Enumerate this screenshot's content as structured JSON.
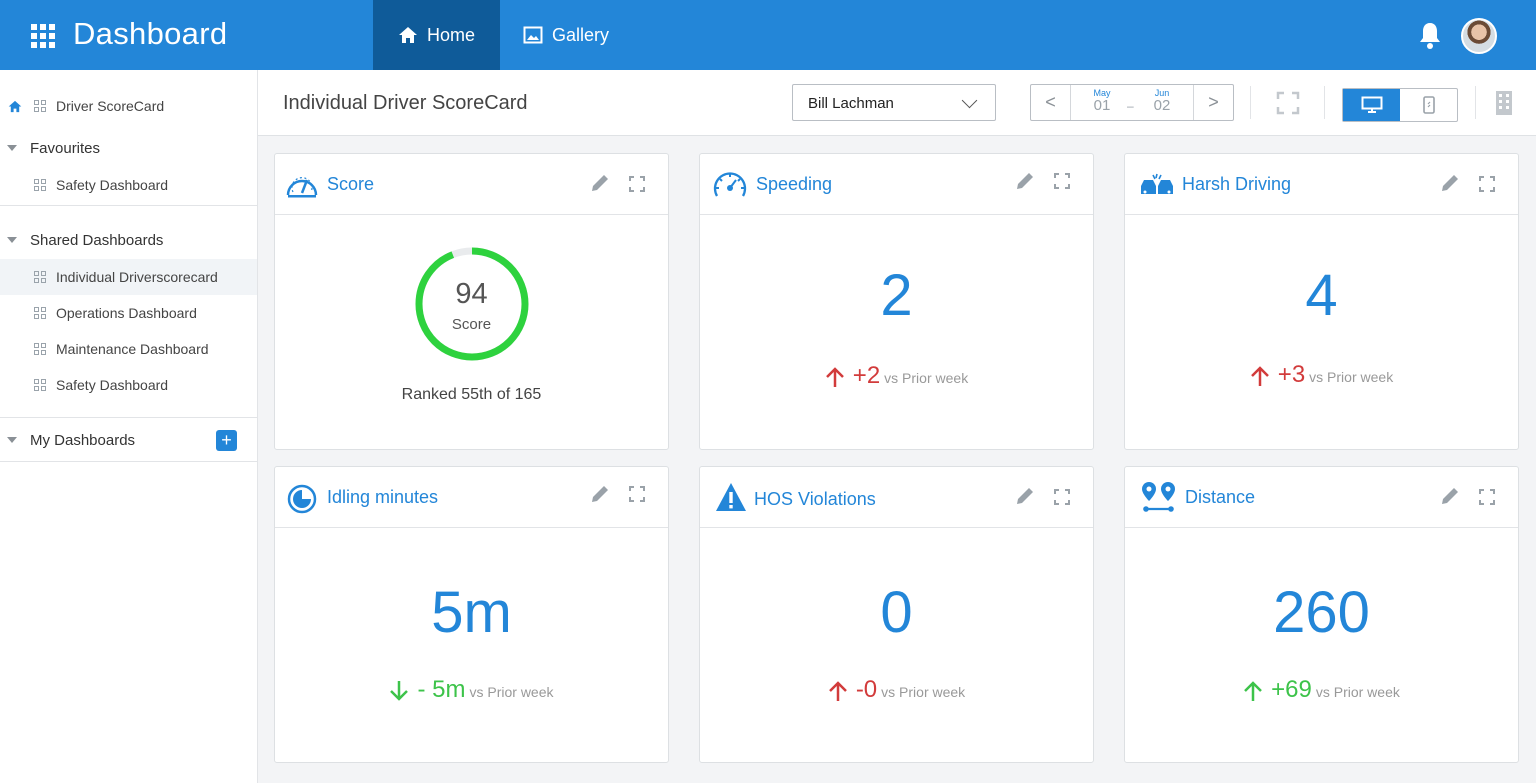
{
  "app": {
    "title": "Dashboard"
  },
  "nav": {
    "home": "Home",
    "gallery": "Gallery"
  },
  "sidebar": {
    "top_item": "Driver ScoreCard",
    "favourites": {
      "title": "Favourites",
      "items": [
        "Safety Dashboard"
      ]
    },
    "shared": {
      "title": "Shared Dashboards",
      "items": [
        "Individual Driverscorecard",
        "Operations Dashboard",
        "Maintenance Dashboard",
        "Safety Dashboard"
      ]
    },
    "mine": {
      "title": "My Dashboards",
      "add": "+"
    }
  },
  "toolbar": {
    "page_title": "Individual Driver ScoreCard",
    "driver": "Bill Lachman",
    "date_from": {
      "month": "May",
      "day": "01"
    },
    "date_to": {
      "month": "Jun",
      "day": "02"
    },
    "date_sep": "–",
    "prev": "<",
    "next": ">"
  },
  "cards": {
    "score": {
      "title": "Score",
      "value": "94",
      "label": "Score",
      "ranked": "Ranked 55th of 165",
      "gauge_fraction": 0.94
    },
    "speeding": {
      "title": "Speeding",
      "value": "2",
      "delta": "+2",
      "vs": "vs Prior week",
      "trend": "up"
    },
    "harsh": {
      "title": "Harsh Driving",
      "value": "4",
      "delta": "+3",
      "vs": "vs Prior week",
      "trend": "up"
    },
    "idling": {
      "title": "Idling minutes",
      "value": "5m",
      "delta": "- 5m",
      "vs": "vs Prior week",
      "trend": "down"
    },
    "hos": {
      "title": "HOS Violations",
      "value": "0",
      "delta": "-0",
      "vs": "vs Prior week",
      "trend": "up"
    },
    "distance": {
      "title": "Distance",
      "value": "260",
      "delta": "+69",
      "vs": "vs Prior week",
      "trend": "up-good"
    }
  },
  "colors": {
    "brand": "#2386d8",
    "brand_dark": "#0f5b99",
    "bad": "#d23b3b",
    "good": "#3dc34a"
  }
}
